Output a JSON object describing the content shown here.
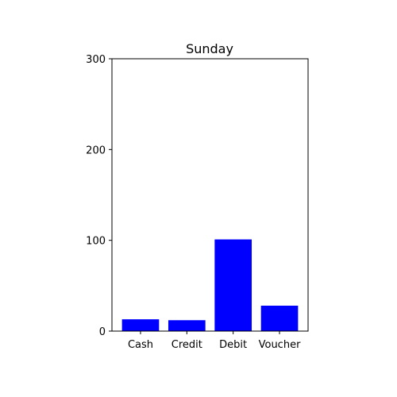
{
  "chart_data": {
    "type": "bar",
    "title": "Sunday",
    "xlabel": "",
    "ylabel": "",
    "categories": [
      "Cash",
      "Credit",
      "Debit",
      "Voucher"
    ],
    "values": [
      13,
      12,
      101,
      28
    ],
    "ylim": [
      0,
      300
    ],
    "yticks": [
      "0",
      "100",
      "200",
      "300"
    ],
    "bar_color": "#0000ff",
    "grid": false,
    "legend": "none"
  }
}
